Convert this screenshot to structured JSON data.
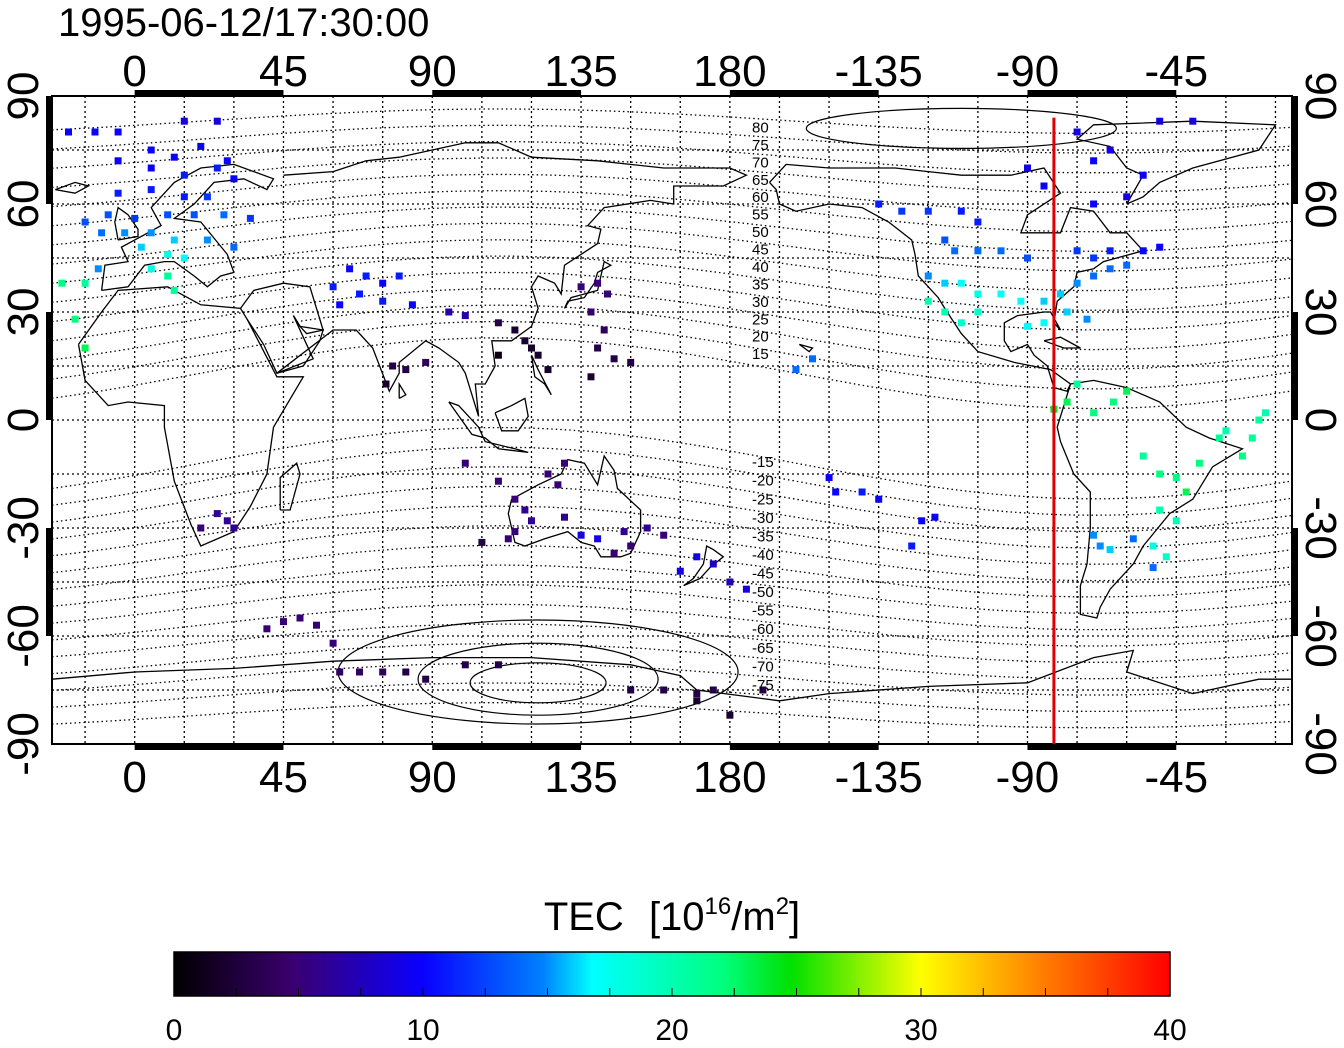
{
  "timestamp": "1995-06-12/17:30:00",
  "lon_ticks": [
    "0",
    "45",
    "90",
    "135",
    "180",
    "-135",
    "-90",
    "-45"
  ],
  "lon_tick_values": [
    0,
    45,
    90,
    135,
    180,
    225,
    270,
    315
  ],
  "lat_ticks": [
    "90",
    "60",
    "30",
    "0",
    "-30",
    "-60",
    "-90"
  ],
  "lat_tick_values": [
    90,
    60,
    30,
    0,
    -30,
    -60,
    -90
  ],
  "maglat_labels": [
    "80",
    "75",
    "70",
    "65",
    "60",
    "55",
    "50",
    "45",
    "40",
    "35",
    "30",
    "25",
    "20",
    "15",
    "-15",
    "-20",
    "-25",
    "-30",
    "-35",
    "-40",
    "-45",
    "-50",
    "-55",
    "-60",
    "-65",
    "-70",
    "-75"
  ],
  "colorbar": {
    "title_main": "TEC",
    "title_unit_open": "[10",
    "title_unit_exp": "16",
    "title_unit_mid": "/m",
    "title_unit_exp2": "2",
    "title_unit_close": "]",
    "ticks": [
      "0",
      "10",
      "20",
      "30",
      "40"
    ],
    "min": 0,
    "max": 40
  },
  "colors": {
    "terminator_line": "#e00000",
    "coastline": "#000000",
    "grid": "#000000"
  },
  "chart_data": {
    "type": "scatter",
    "title": "1995-06-12/17:30:00",
    "xlabel": "",
    "ylabel": "",
    "xlim": [
      -25,
      350
    ],
    "ylim": [
      -90,
      90
    ],
    "x_tick_labels": [
      "0",
      "45",
      "90",
      "135",
      "180",
      "-135",
      "-90",
      "-45"
    ],
    "y_tick_labels": [
      "90",
      "60",
      "30",
      "0",
      "-30",
      "-60",
      "-90"
    ],
    "grid": true,
    "colorbar_label": "TEC [10^16/m^2]",
    "colorbar_range": [
      0,
      40
    ],
    "subsolar_meridian_lon": -82,
    "series": [
      {
        "values": [
          [
            -20,
            80,
            10
          ],
          [
            -12,
            80,
            10
          ],
          [
            -5,
            80,
            10
          ],
          [
            15,
            83,
            9
          ],
          [
            25,
            83,
            9
          ],
          [
            5,
            75,
            10
          ],
          [
            12,
            73,
            10
          ],
          [
            20,
            76,
            10
          ],
          [
            28,
            72,
            10
          ],
          [
            -5,
            72,
            10
          ],
          [
            5,
            70,
            10
          ],
          [
            15,
            68,
            11
          ],
          [
            25,
            70,
            11
          ],
          [
            30,
            67,
            10
          ],
          [
            -5,
            63,
            11
          ],
          [
            5,
            64,
            11
          ],
          [
            15,
            62,
            11
          ],
          [
            22,
            62,
            12
          ],
          [
            35,
            56,
            12
          ],
          [
            -8,
            57,
            13
          ],
          [
            0,
            56,
            12
          ],
          [
            10,
            57,
            13
          ],
          [
            18,
            57,
            13
          ],
          [
            27,
            57,
            14
          ],
          [
            -15,
            55,
            13
          ],
          [
            -10,
            52,
            14
          ],
          [
            -3,
            52,
            15
          ],
          [
            5,
            52,
            15
          ],
          [
            12,
            50,
            16
          ],
          [
            22,
            50,
            15
          ],
          [
            30,
            48,
            14
          ],
          [
            2,
            48,
            16
          ],
          [
            10,
            46,
            18
          ],
          [
            15,
            45,
            17
          ],
          [
            -11,
            42,
            15
          ],
          [
            5,
            42,
            18
          ],
          [
            10,
            40,
            21
          ],
          [
            -15,
            38,
            21
          ],
          [
            -22,
            38,
            22
          ],
          [
            -18,
            28,
            22
          ],
          [
            -15,
            20,
            23
          ],
          [
            12,
            36,
            21
          ],
          [
            65,
            42,
            10
          ],
          [
            70,
            40,
            11
          ],
          [
            75,
            38,
            10
          ],
          [
            80,
            40,
            11
          ],
          [
            60,
            37,
            11
          ],
          [
            68,
            35,
            11
          ],
          [
            75,
            33,
            11
          ],
          [
            62,
            32,
            10
          ],
          [
            84,
            32,
            10
          ],
          [
            95,
            30,
            7
          ],
          [
            100,
            29,
            7
          ],
          [
            110,
            27,
            3
          ],
          [
            115,
            25,
            2
          ],
          [
            118,
            22,
            2
          ],
          [
            120,
            20,
            2
          ],
          [
            122,
            18,
            2
          ],
          [
            125,
            14,
            2
          ],
          [
            110,
            18,
            1
          ],
          [
            135,
            37,
            5
          ],
          [
            140,
            38,
            5
          ],
          [
            143,
            35,
            5
          ],
          [
            138,
            30,
            5
          ],
          [
            142,
            25,
            4
          ],
          [
            140,
            20,
            3
          ],
          [
            145,
            17,
            3
          ],
          [
            138,
            12,
            2
          ],
          [
            150,
            16,
            3
          ],
          [
            78,
            15,
            3
          ],
          [
            82,
            14,
            3
          ],
          [
            88,
            16,
            4
          ],
          [
            76,
            10,
            2
          ],
          [
            100,
            -12,
            5
          ],
          [
            110,
            -17,
            5
          ],
          [
            125,
            -15,
            5
          ],
          [
            128,
            -18,
            5
          ],
          [
            130,
            -12,
            5
          ],
          [
            115,
            -22,
            5
          ],
          [
            118,
            -25,
            6
          ],
          [
            120,
            -28,
            6
          ],
          [
            115,
            -31,
            5
          ],
          [
            113,
            -33,
            5
          ],
          [
            105,
            -34,
            3
          ],
          [
            130,
            -27,
            6
          ],
          [
            135,
            -32,
            9
          ],
          [
            140,
            -33,
            9
          ],
          [
            145,
            -37,
            5
          ],
          [
            150,
            -35,
            5
          ],
          [
            148,
            -31,
            6
          ],
          [
            155,
            -30,
            6
          ],
          [
            160,
            -32,
            5
          ],
          [
            25,
            -26,
            6
          ],
          [
            28,
            -28,
            6
          ],
          [
            30,
            -30,
            6
          ],
          [
            20,
            -30,
            5
          ],
          [
            40,
            -58,
            5
          ],
          [
            45,
            -56,
            5
          ],
          [
            50,
            -55,
            5
          ],
          [
            55,
            -57,
            5
          ],
          [
            60,
            -62,
            5
          ],
          [
            62,
            -70,
            4
          ],
          [
            68,
            -70,
            4
          ],
          [
            75,
            -70,
            4
          ],
          [
            82,
            -70,
            3
          ],
          [
            88,
            -72,
            3
          ],
          [
            100,
            -68,
            3
          ],
          [
            110,
            -68,
            3
          ],
          [
            150,
            -75,
            3
          ],
          [
            160,
            -75,
            3
          ],
          [
            170,
            -76,
            3
          ],
          [
            175,
            -75,
            3
          ],
          [
            190,
            -75,
            3
          ],
          [
            170,
            -78,
            2
          ],
          [
            180,
            -82,
            2
          ],
          [
            165,
            -42,
            9
          ],
          [
            170,
            -38,
            9
          ],
          [
            175,
            -40,
            8
          ],
          [
            180,
            -45,
            7
          ],
          [
            185,
            -47,
            9
          ],
          [
            200,
            14,
            14
          ],
          [
            205,
            17,
            14
          ],
          [
            210,
            -16,
            10
          ],
          [
            212,
            -20,
            10
          ],
          [
            220,
            -20,
            11
          ],
          [
            225,
            -22,
            10
          ],
          [
            238,
            -28,
            10
          ],
          [
            242,
            -27,
            10
          ],
          [
            235,
            -35,
            11
          ],
          [
            225,
            60,
            11
          ],
          [
            232,
            58,
            12
          ],
          [
            240,
            58,
            12
          ],
          [
            250,
            58,
            11
          ],
          [
            255,
            55,
            11
          ],
          [
            245,
            50,
            13
          ],
          [
            248,
            47,
            14
          ],
          [
            255,
            47,
            14
          ],
          [
            262,
            47,
            14
          ],
          [
            270,
            45,
            13
          ],
          [
            240,
            40,
            15
          ],
          [
            245,
            38,
            16
          ],
          [
            250,
            38,
            17
          ],
          [
            255,
            35,
            18
          ],
          [
            262,
            35,
            17
          ],
          [
            268,
            33,
            17
          ],
          [
            275,
            33,
            16
          ],
          [
            280,
            35,
            16
          ],
          [
            285,
            38,
            15
          ],
          [
            290,
            40,
            14
          ],
          [
            295,
            42,
            14
          ],
          [
            300,
            43,
            14
          ],
          [
            270,
            26,
            17
          ],
          [
            275,
            27,
            17
          ],
          [
            282,
            30,
            16
          ],
          [
            288,
            28,
            15
          ],
          [
            240,
            33,
            20
          ],
          [
            245,
            30,
            20
          ],
          [
            250,
            27,
            19
          ],
          [
            255,
            30,
            19
          ],
          [
            285,
            47,
            12
          ],
          [
            290,
            45,
            12
          ],
          [
            295,
            47,
            11
          ],
          [
            305,
            47,
            10
          ],
          [
            310,
            48,
            10
          ],
          [
            290,
            60,
            10
          ],
          [
            300,
            62,
            9
          ],
          [
            305,
            68,
            10
          ],
          [
            290,
            72,
            10
          ],
          [
            295,
            75,
            9
          ],
          [
            310,
            83,
            9
          ],
          [
            320,
            83,
            9
          ],
          [
            285,
            80,
            9
          ],
          [
            275,
            65,
            10
          ],
          [
            270,
            70,
            9
          ],
          [
            285,
            10,
            21
          ],
          [
            278,
            3,
            24
          ],
          [
            282,
            5,
            23
          ],
          [
            290,
            2,
            22
          ],
          [
            296,
            5,
            22
          ],
          [
            300,
            8,
            23
          ],
          [
            305,
            -10,
            21
          ],
          [
            310,
            -15,
            22
          ],
          [
            315,
            -16,
            22
          ],
          [
            318,
            -20,
            23
          ],
          [
            322,
            -12,
            22
          ],
          [
            328,
            -5,
            21
          ],
          [
            330,
            -3,
            20
          ],
          [
            335,
            -10,
            22
          ],
          [
            338,
            -5,
            21
          ],
          [
            340,
            0,
            21
          ],
          [
            342,
            2,
            20
          ],
          [
            310,
            -25,
            20
          ],
          [
            315,
            -28,
            20
          ],
          [
            308,
            -35,
            18
          ],
          [
            312,
            -38,
            19
          ],
          [
            290,
            -32,
            15
          ],
          [
            292,
            -35,
            15
          ],
          [
            295,
            -36,
            16
          ],
          [
            302,
            -33,
            14
          ],
          [
            308,
            -41,
            14
          ]
        ]
      }
    ]
  }
}
